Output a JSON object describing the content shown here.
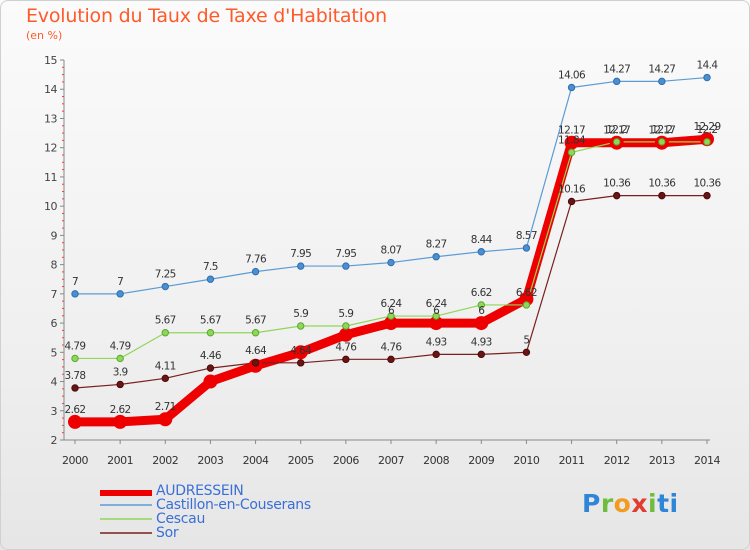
{
  "title": "Evolution du Taux de Taxe d'Habitation",
  "subtitle": "(en %)",
  "logo": "Proxiti",
  "chart_data": {
    "type": "line",
    "x": [
      "2000",
      "2001",
      "2002",
      "2003",
      "2004",
      "2005",
      "2006",
      "2007",
      "2008",
      "2009",
      "2010",
      "2011",
      "2012",
      "2013",
      "2014"
    ],
    "ylim": [
      2,
      15
    ],
    "yticks": [
      2,
      3,
      4,
      5,
      6,
      7,
      8,
      9,
      10,
      11,
      12,
      13,
      14,
      15
    ],
    "grid": false,
    "legend_position": "bottom-left",
    "series": [
      {
        "name": "AUDRESSEIN",
        "color": "#ee0000",
        "values": [
          2.62,
          2.62,
          2.71,
          4.0,
          4.54,
          5.0,
          5.6,
          6.0,
          6.0,
          6.0,
          6.82,
          12.17,
          12.17,
          12.17,
          12.29
        ],
        "labels": [
          "2.62",
          "2.62",
          "2.71",
          "",
          "",
          "",
          "",
          "6",
          "6",
          "6",
          "",
          "12.17",
          "12.17",
          "12.17",
          "12.29"
        ]
      },
      {
        "name": "Castillon-en-Couserans",
        "color": "#5b9bd5",
        "values": [
          7,
          7,
          7.25,
          7.5,
          7.76,
          7.95,
          7.95,
          8.07,
          8.27,
          8.44,
          8.57,
          14.06,
          14.27,
          14.27,
          14.4
        ],
        "labels": [
          "7",
          "7",
          "7.25",
          "7.5",
          "7.76",
          "7.95",
          "7.95",
          "8.07",
          "8.27",
          "8.44",
          "8.57",
          "14.06",
          "14.27",
          "14.27",
          "14.4"
        ]
      },
      {
        "name": "Cescau",
        "color": "#8fd65a",
        "values": [
          4.79,
          4.79,
          5.67,
          5.67,
          5.67,
          5.9,
          5.9,
          6.24,
          6.24,
          6.62,
          6.62,
          11.84,
          12.2,
          12.2,
          12.2
        ],
        "labels": [
          "4.79",
          "4.79",
          "5.67",
          "5.67",
          "5.67",
          "5.9",
          "5.9",
          "6.24",
          "6.24",
          "6.62",
          "6.62",
          "11.84",
          "12.2",
          "12.2",
          "12.2"
        ]
      },
      {
        "name": "Sor",
        "color": "#7a1f1f",
        "values": [
          3.78,
          3.9,
          4.11,
          4.46,
          4.64,
          4.64,
          4.76,
          4.76,
          4.93,
          4.93,
          5,
          10.16,
          10.36,
          10.36,
          10.36
        ],
        "labels": [
          "3.78",
          "3.9",
          "4.11",
          "4.46",
          "4.64",
          "4.64",
          "4.76",
          "4.76",
          "4.93",
          "4.93",
          "5",
          "10.16",
          "10.36",
          "10.36",
          "10.36"
        ]
      }
    ]
  }
}
